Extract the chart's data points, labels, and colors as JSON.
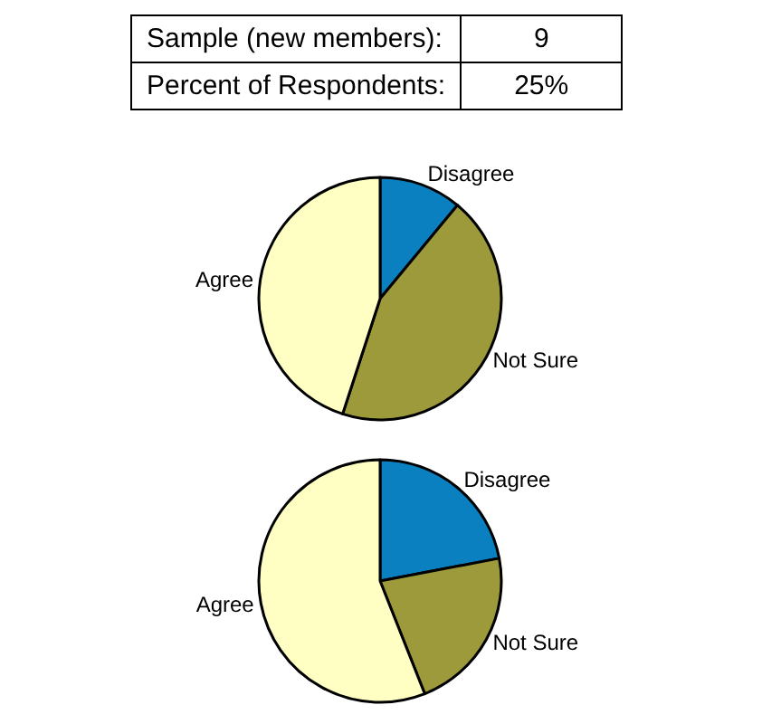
{
  "chart_data": [
    {
      "type": "other",
      "annotations": [
        "Sample (new members):",
        "9",
        "Percent of Respondents:",
        "25%"
      ]
    },
    {
      "type": "pie",
      "categories": [
        "Disagree",
        "Not Sure",
        "Agree"
      ],
      "values": [
        11,
        44,
        45
      ],
      "colors": [
        "#0a80c0",
        "#9c9a3a",
        "#ffffc4"
      ],
      "legend": false
    },
    {
      "type": "pie",
      "categories": [
        "Disagree",
        "Not Sure",
        "Agree"
      ],
      "values": [
        22,
        22,
        56
      ],
      "colors": [
        "#0a80c0",
        "#9c9a3a",
        "#ffffc4"
      ],
      "legend": false
    }
  ]
}
